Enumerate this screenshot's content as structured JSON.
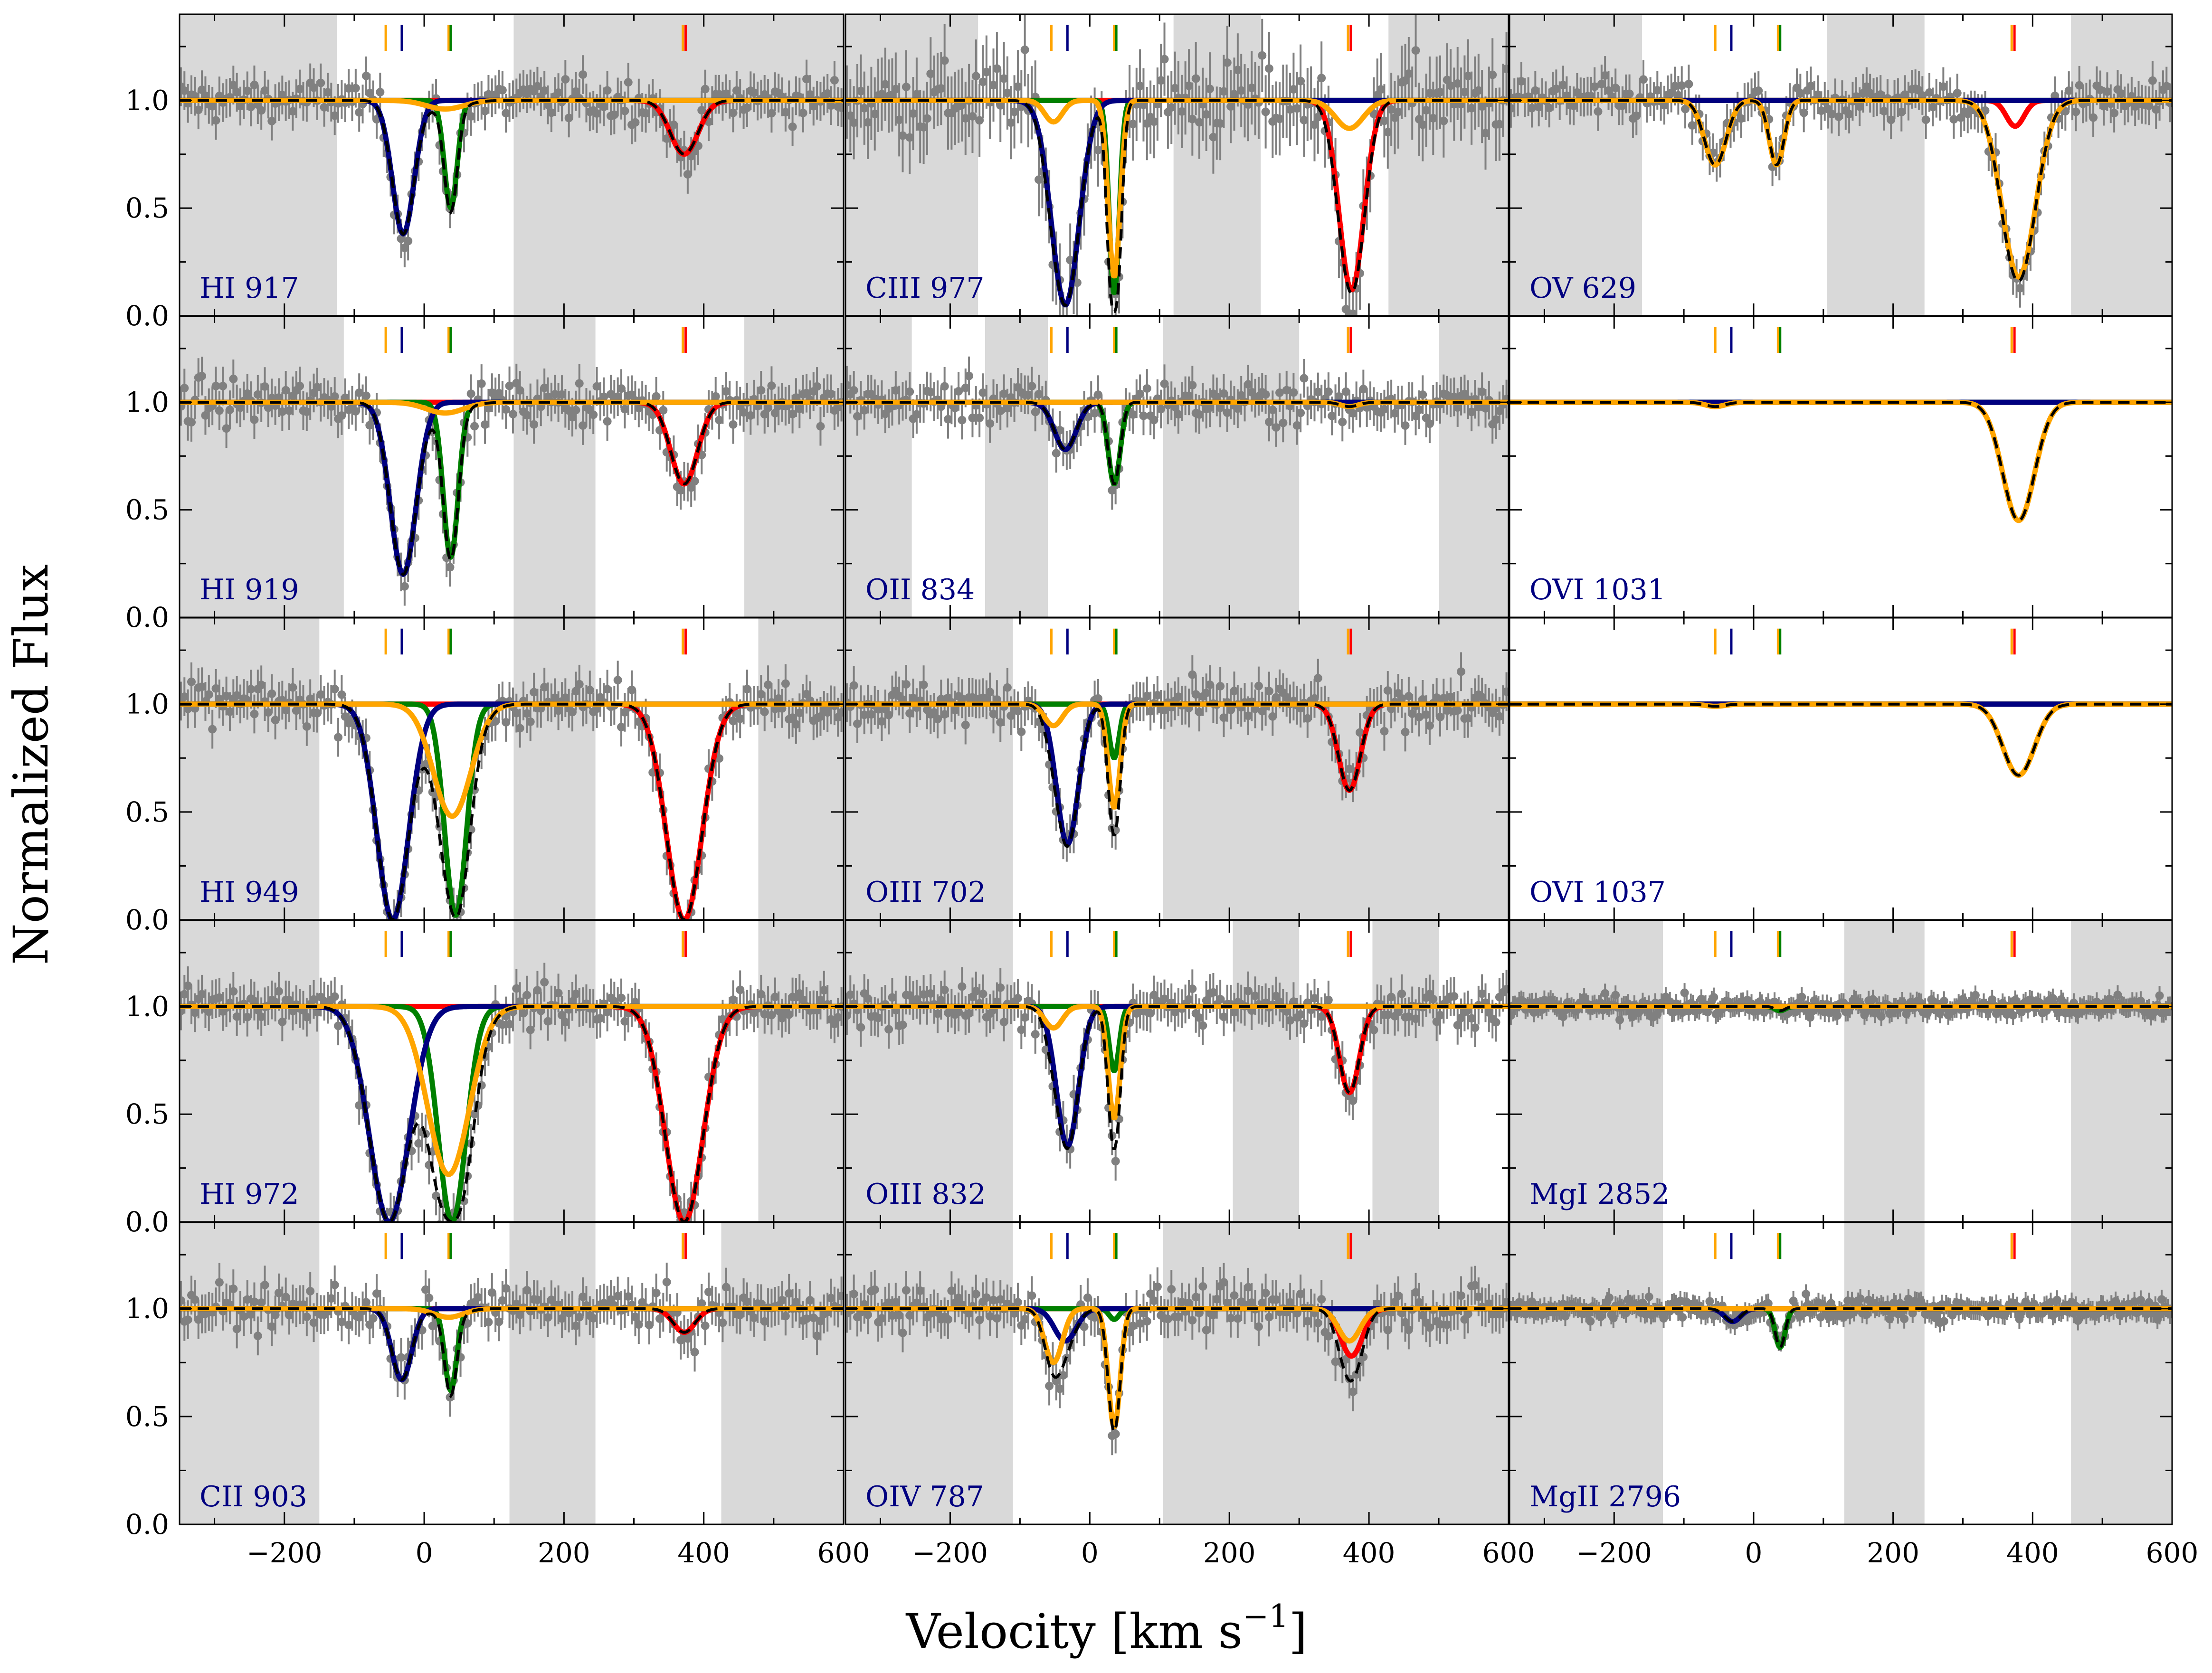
{
  "figure": {
    "xlabel": "Velocity [km s$^{-1}$]",
    "ylabel": "Normalized Flux"
  },
  "chart_data": {
    "type": "line",
    "layout": "5 rows x 3 columns, shared axes",
    "xlim": [
      -350,
      600
    ],
    "ylim": [
      0,
      1.4
    ],
    "xticks": [
      "−200",
      "0",
      "200",
      "400",
      "600"
    ],
    "yticks": [
      "0.0",
      "0.5",
      "1.0"
    ],
    "component_colors": {
      "c1": "#000080",
      "c2": "#008000",
      "c3": "#ff0000",
      "c4": "#ffa500",
      "total": "#000000",
      "data": "#808080",
      "mask": "#d9d9d9"
    },
    "tick_velocities": [
      {
        "v": -55,
        "color": "#ffa500"
      },
      {
        "v": -32,
        "color": "#000080"
      },
      {
        "v": 35,
        "color": "#ffa500"
      },
      {
        "v": 38,
        "color": "#008000"
      },
      {
        "v": 370,
        "color": "#ffa500"
      },
      {
        "v": 374,
        "color": "#ff0000"
      }
    ],
    "panels": [
      {
        "label": "HI 917",
        "col": 0,
        "row": 0,
        "data": true,
        "masks": [
          [
            -350,
            -125
          ],
          [
            128,
            600
          ]
        ],
        "components": [
          {
            "color": "#000080",
            "v": -30,
            "b": 22,
            "depth": 0.62
          },
          {
            "color": "#008000",
            "v": 38,
            "b": 13,
            "depth": 0.5
          },
          {
            "color": "#ff0000",
            "v": 372,
            "b": 28,
            "depth": 0.25
          },
          {
            "color": "#ffa500",
            "v": 30,
            "b": 38,
            "depth": 0.04
          }
        ]
      },
      {
        "label": "CIII 977",
        "col": 1,
        "row": 0,
        "data": true,
        "masks": [
          [
            -350,
            -160
          ],
          [
            120,
            245
          ],
          [
            428,
            600
          ]
        ],
        "components": [
          {
            "color": "#000080",
            "v": -35,
            "b": 28,
            "depth": 0.95
          },
          {
            "color": "#008000",
            "v": 35,
            "b": 10,
            "depth": 0.9
          },
          {
            "color": "#ff0000",
            "v": 375,
            "b": 25,
            "depth": 0.88
          },
          {
            "color": "#ffa500",
            "v": -52,
            "b": 18,
            "depth": 0.1
          },
          {
            "color": "#ffa500",
            "v": 35,
            "b": 12,
            "depth": 0.82
          },
          {
            "color": "#ffa500",
            "v": 372,
            "b": 28,
            "depth": 0.13
          }
        ]
      },
      {
        "label": "OV 629",
        "col": 2,
        "row": 0,
        "data": true,
        "masks": [
          [
            -350,
            -160
          ],
          [
            105,
            245
          ],
          [
            455,
            600
          ]
        ],
        "components": [
          {
            "color": "#ff0000",
            "v": 375,
            "b": 18,
            "depth": 0.12
          },
          {
            "color": "#ffa500",
            "v": -55,
            "b": 22,
            "depth": 0.3
          },
          {
            "color": "#ffa500",
            "v": 33,
            "b": 15,
            "depth": 0.3
          },
          {
            "color": "#ffa500",
            "v": 380,
            "b": 34,
            "depth": 0.82
          }
        ]
      },
      {
        "label": "HI 919",
        "col": 0,
        "row": 1,
        "data": true,
        "masks": [
          [
            -350,
            -115
          ],
          [
            128,
            245
          ],
          [
            458,
            600
          ]
        ],
        "components": [
          {
            "color": "#000080",
            "v": -30,
            "b": 26,
            "depth": 0.8
          },
          {
            "color": "#008000",
            "v": 38,
            "b": 15,
            "depth": 0.72
          },
          {
            "color": "#ff0000",
            "v": 372,
            "b": 27,
            "depth": 0.38
          },
          {
            "color": "#ffa500",
            "v": 30,
            "b": 38,
            "depth": 0.05
          }
        ]
      },
      {
        "label": "OII 834",
        "col": 1,
        "row": 1,
        "data": true,
        "masks": [
          [
            -350,
            -255
          ],
          [
            -150,
            -60
          ],
          [
            105,
            300
          ],
          [
            500,
            600
          ]
        ],
        "components": [
          {
            "color": "#000080",
            "v": -35,
            "b": 22,
            "depth": 0.22
          },
          {
            "color": "#008000",
            "v": 35,
            "b": 12,
            "depth": 0.38
          },
          {
            "color": "#ffa500",
            "v": 372,
            "b": 18,
            "depth": 0.02
          }
        ]
      },
      {
        "label": "OVI 1031",
        "col": 2,
        "row": 1,
        "data": false,
        "masks": [],
        "components": [
          {
            "color": "#ffa500",
            "v": -55,
            "b": 20,
            "depth": 0.02
          },
          {
            "color": "#ffa500",
            "v": 380,
            "b": 32,
            "depth": 0.55
          }
        ]
      },
      {
        "label": "HI 949",
        "col": 0,
        "row": 2,
        "data": true,
        "masks": [
          [
            -350,
            -150
          ],
          [
            128,
            245
          ],
          [
            478,
            600
          ]
        ],
        "components": [
          {
            "color": "#000080",
            "v": -45,
            "b": 32,
            "depth": 1.0
          },
          {
            "color": "#008000",
            "v": 45,
            "b": 22,
            "depth": 0.98
          },
          {
            "color": "#ff0000",
            "v": 372,
            "b": 36,
            "depth": 1.0
          },
          {
            "color": "#ffa500",
            "v": 40,
            "b": 38,
            "depth": 0.52
          }
        ]
      },
      {
        "label": "OIII 702",
        "col": 1,
        "row": 2,
        "data": true,
        "masks": [
          [
            -350,
            -110
          ],
          [
            105,
            600
          ]
        ],
        "components": [
          {
            "color": "#000080",
            "v": -32,
            "b": 22,
            "depth": 0.65
          },
          {
            "color": "#008000",
            "v": 35,
            "b": 10,
            "depth": 0.25
          },
          {
            "color": "#ff0000",
            "v": 372,
            "b": 22,
            "depth": 0.4
          },
          {
            "color": "#ffa500",
            "v": -52,
            "b": 18,
            "depth": 0.1
          },
          {
            "color": "#ffa500",
            "v": 35,
            "b": 12,
            "depth": 0.48
          }
        ]
      },
      {
        "label": "OVI 1037",
        "col": 2,
        "row": 2,
        "data": false,
        "masks": [],
        "components": [
          {
            "color": "#ffa500",
            "v": -55,
            "b": 20,
            "depth": 0.01
          },
          {
            "color": "#ffa500",
            "v": 380,
            "b": 32,
            "depth": 0.33
          }
        ]
      },
      {
        "label": "HI 972",
        "col": 0,
        "row": 3,
        "data": true,
        "masks": [
          [
            -350,
            -150
          ],
          [
            128,
            245
          ],
          [
            478,
            600
          ]
        ],
        "components": [
          {
            "color": "#000080",
            "v": -50,
            "b": 40,
            "depth": 1.0
          },
          {
            "color": "#008000",
            "v": 40,
            "b": 28,
            "depth": 1.0
          },
          {
            "color": "#ff0000",
            "v": 372,
            "b": 38,
            "depth": 1.0
          },
          {
            "color": "#ffa500",
            "v": 35,
            "b": 42,
            "depth": 0.78
          }
        ]
      },
      {
        "label": "OIII 832",
        "col": 1,
        "row": 3,
        "data": true,
        "masks": [
          [
            -350,
            -110
          ],
          [
            205,
            300
          ],
          [
            405,
            500
          ]
        ],
        "components": [
          {
            "color": "#000080",
            "v": -32,
            "b": 22,
            "depth": 0.65
          },
          {
            "color": "#008000",
            "v": 35,
            "b": 10,
            "depth": 0.3
          },
          {
            "color": "#ff0000",
            "v": 372,
            "b": 20,
            "depth": 0.4
          },
          {
            "color": "#ffa500",
            "v": -52,
            "b": 18,
            "depth": 0.1
          },
          {
            "color": "#ffa500",
            "v": 35,
            "b": 12,
            "depth": 0.52
          }
        ]
      },
      {
        "label": "MgI 2852",
        "col": 2,
        "row": 3,
        "data": true,
        "masks": [
          [
            -350,
            -130
          ],
          [
            130,
            245
          ],
          [
            455,
            600
          ]
        ],
        "components": [
          {
            "color": "#008000",
            "v": 38,
            "b": 10,
            "depth": 0.02
          }
        ]
      },
      {
        "label": "CII 903",
        "col": 0,
        "row": 4,
        "data": true,
        "masks": [
          [
            -350,
            -150
          ],
          [
            122,
            245
          ],
          [
            425,
            600
          ]
        ],
        "components": [
          {
            "color": "#000080",
            "v": -32,
            "b": 20,
            "depth": 0.33
          },
          {
            "color": "#008000",
            "v": 38,
            "b": 12,
            "depth": 0.38
          },
          {
            "color": "#ff0000",
            "v": 372,
            "b": 22,
            "depth": 0.11
          },
          {
            "color": "#ffa500",
            "v": 35,
            "b": 30,
            "depth": 0.04
          }
        ]
      },
      {
        "label": "OIV 787",
        "col": 1,
        "row": 4,
        "data": true,
        "masks": [
          [
            -350,
            -110
          ],
          [
            105,
            600
          ]
        ],
        "components": [
          {
            "color": "#000080",
            "v": -35,
            "b": 22,
            "depth": 0.15
          },
          {
            "color": "#008000",
            "v": 35,
            "b": 10,
            "depth": 0.05
          },
          {
            "color": "#ff0000",
            "v": 375,
            "b": 22,
            "depth": 0.22
          },
          {
            "color": "#ffa500",
            "v": -52,
            "b": 18,
            "depth": 0.25
          },
          {
            "color": "#ffa500",
            "v": 35,
            "b": 12,
            "depth": 0.55
          },
          {
            "color": "#ffa500",
            "v": 372,
            "b": 22,
            "depth": 0.15
          }
        ]
      },
      {
        "label": "MgII 2796",
        "col": 2,
        "row": 4,
        "data": true,
        "masks": [
          [
            -350,
            -130
          ],
          [
            130,
            245
          ],
          [
            455,
            600
          ]
        ],
        "components": [
          {
            "color": "#000080",
            "v": -30,
            "b": 16,
            "depth": 0.06
          },
          {
            "color": "#008000",
            "v": 38,
            "b": 10,
            "depth": 0.18
          }
        ]
      }
    ]
  }
}
